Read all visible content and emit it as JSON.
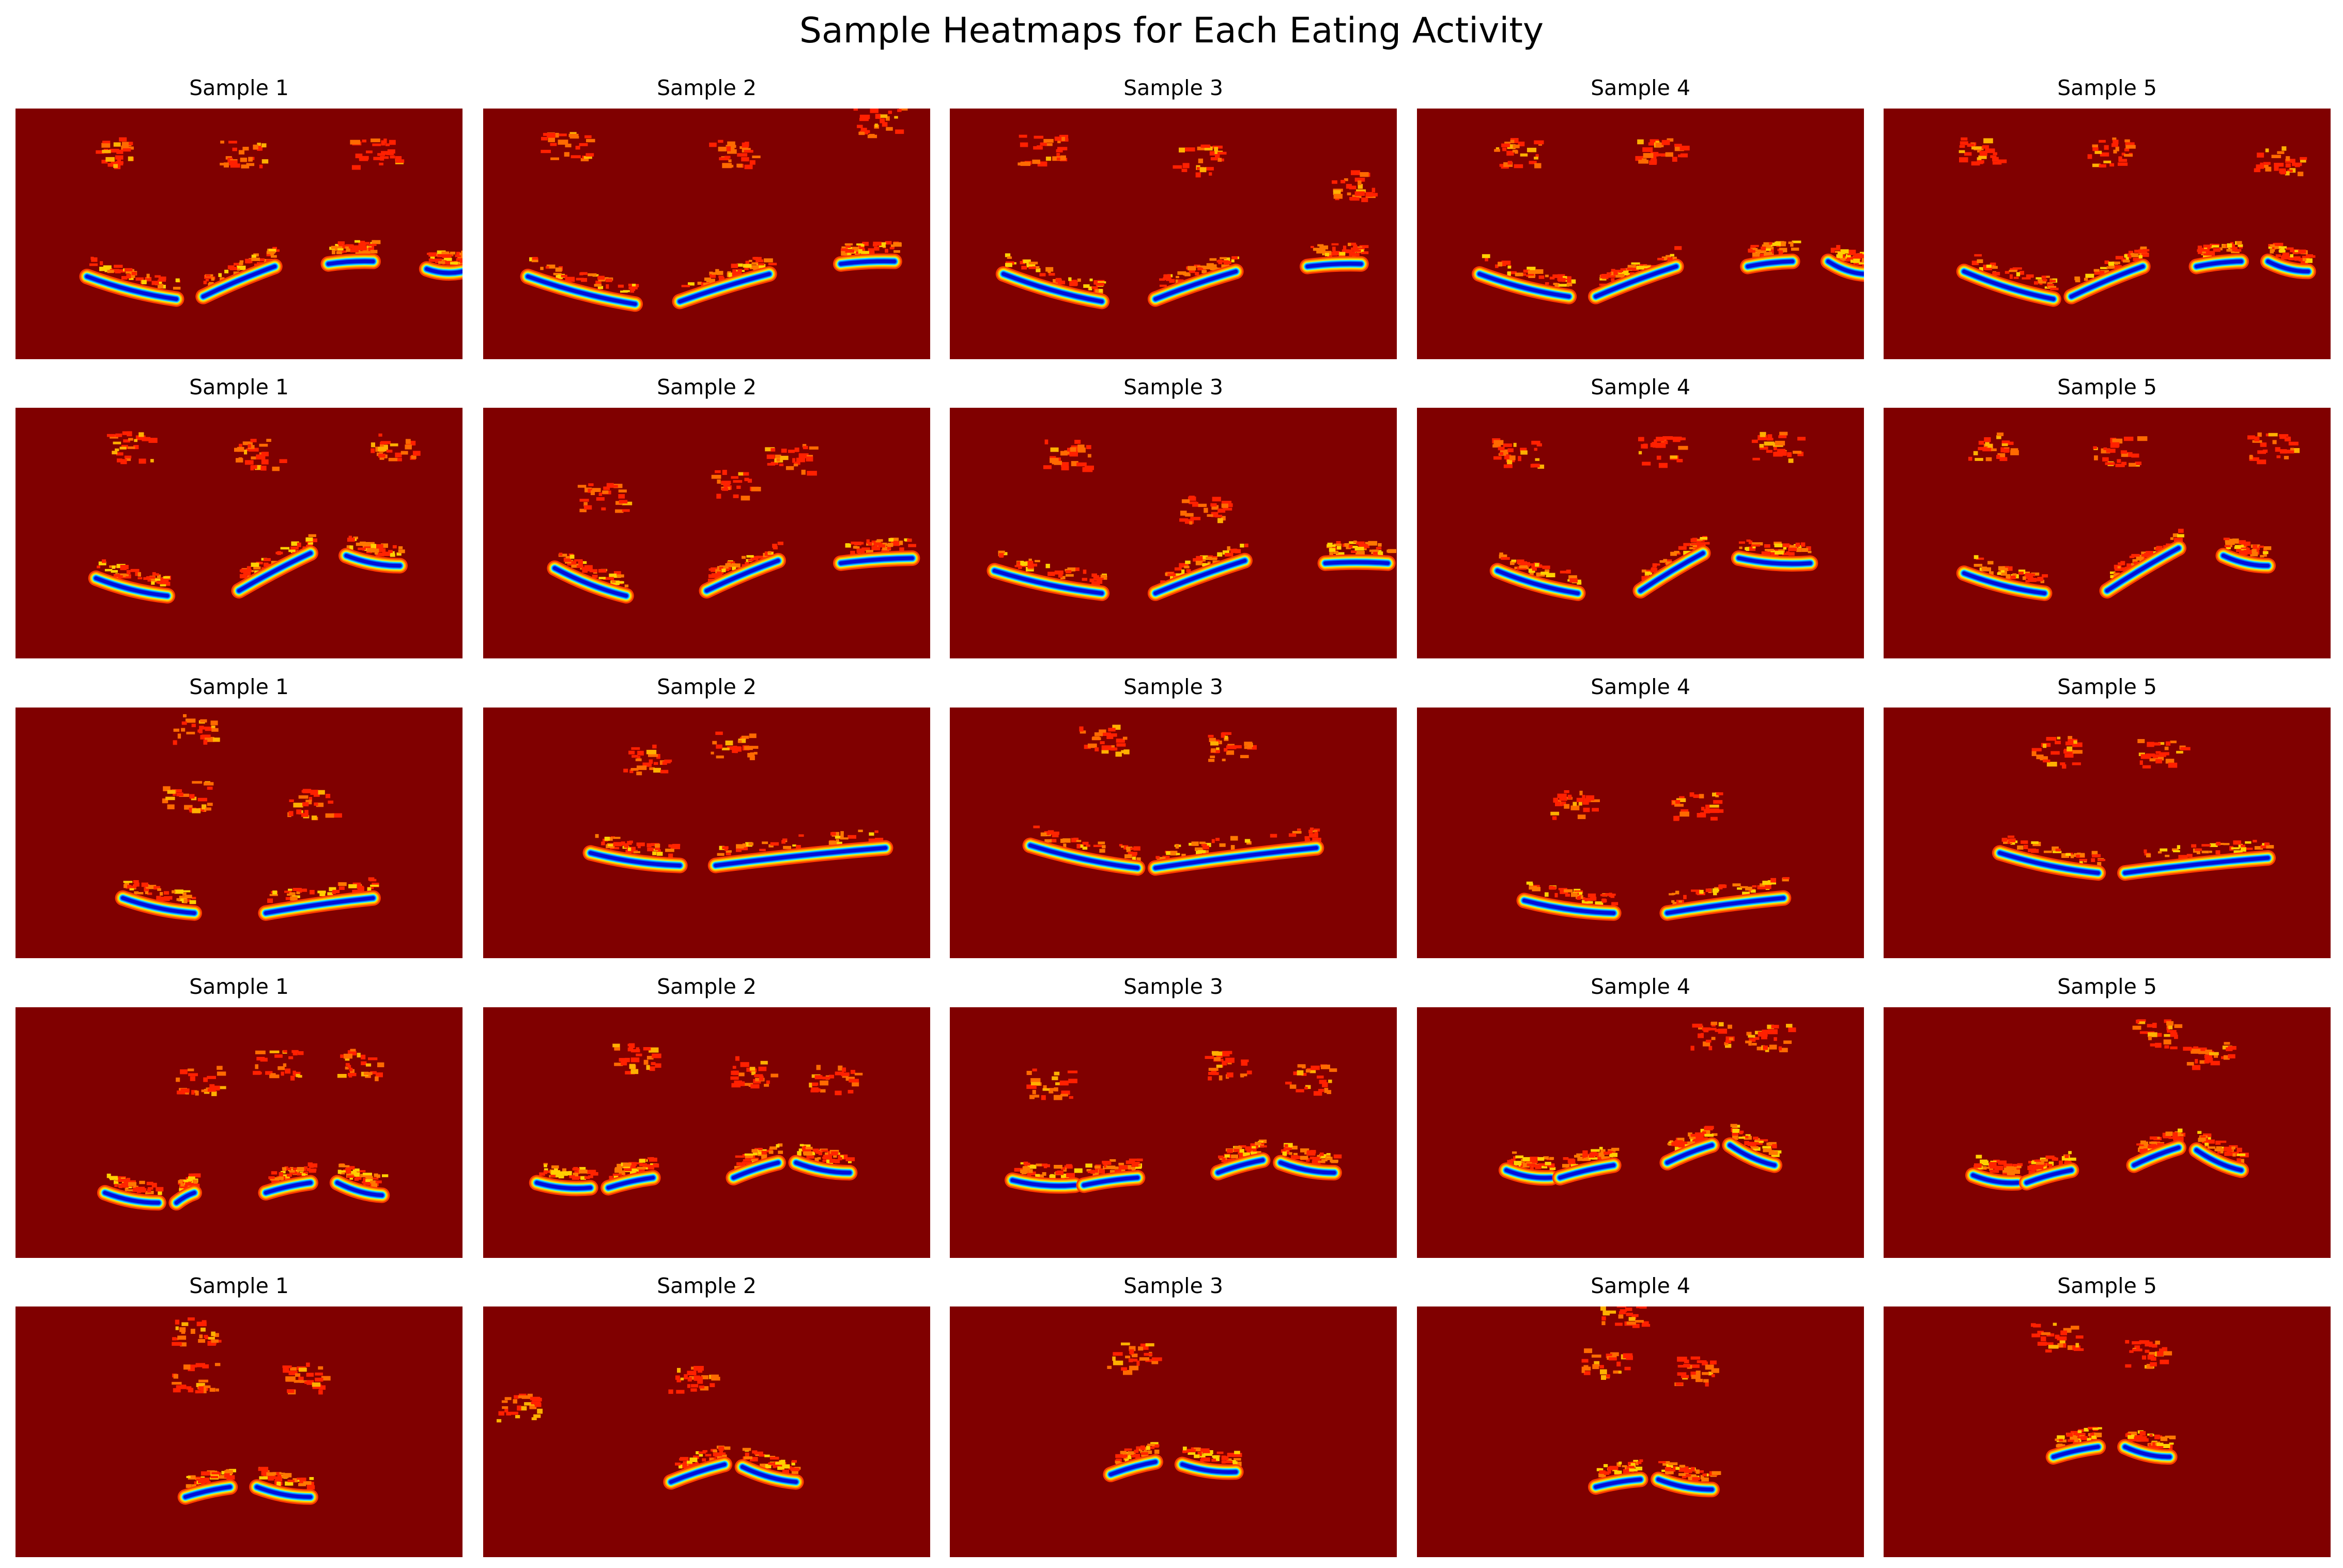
{
  "chart_data": {
    "type": "heatmap",
    "title": "Sample Heatmaps for Each Eating Activity",
    "colormap": "jet",
    "background_color": "#800000",
    "rows": [
      {
        "panels": [
          {
            "title": "Sample 1",
            "arcs": [
              [
                0.16,
                0.67,
                0.36,
                0.76,
                0.24
              ],
              [
                0.42,
                0.75,
                0.58,
                0.63,
                0.05
              ],
              [
                0.7,
                0.62,
                0.8,
                0.61,
                0.02
              ],
              [
                0.92,
                0.64,
                1.0,
                0.65,
                0.02
              ]
            ],
            "blobs": [
              [
                0.22,
                0.17
              ],
              [
                0.5,
                0.17
              ],
              [
                0.8,
                0.17
              ]
            ]
          },
          {
            "title": "Sample 2",
            "arcs": [
              [
                0.1,
                0.67,
                0.34,
                0.78,
                0.24
              ],
              [
                0.44,
                0.77,
                0.64,
                0.66,
                0.06
              ],
              [
                0.8,
                0.62,
                0.92,
                0.61,
                0.02
              ]
            ],
            "blobs": [
              [
                0.18,
                0.15
              ],
              [
                0.55,
                0.18
              ],
              [
                0.88,
                0.05
              ]
            ]
          },
          {
            "title": "Sample 3",
            "arcs": [
              [
                0.12,
                0.66,
                0.34,
                0.77,
                0.23
              ],
              [
                0.46,
                0.76,
                0.64,
                0.65,
                0.05
              ],
              [
                0.8,
                0.63,
                0.92,
                0.62,
                0.02
              ]
            ],
            "blobs": [
              [
                0.2,
                0.16
              ],
              [
                0.55,
                0.2
              ],
              [
                0.9,
                0.3
              ]
            ]
          },
          {
            "title": "Sample 4",
            "arcs": [
              [
                0.14,
                0.66,
                0.34,
                0.75,
                0.25
              ],
              [
                0.4,
                0.75,
                0.58,
                0.63,
                0.06
              ],
              [
                0.74,
                0.63,
                0.84,
                0.61,
                0.02
              ],
              [
                0.92,
                0.61,
                1.0,
                0.66,
                0.02
              ]
            ],
            "blobs": [
              [
                0.22,
                0.17
              ],
              [
                0.54,
                0.17
              ]
            ]
          },
          {
            "title": "Sample 5",
            "arcs": [
              [
                0.18,
                0.65,
                0.38,
                0.76,
                0.24
              ],
              [
                0.42,
                0.75,
                0.58,
                0.63,
                0.05
              ],
              [
                0.7,
                0.63,
                0.8,
                0.61,
                0.02
              ],
              [
                0.86,
                0.61,
                0.95,
                0.65,
                0.02
              ]
            ],
            "blobs": [
              [
                0.22,
                0.17
              ],
              [
                0.5,
                0.17
              ],
              [
                0.88,
                0.2
              ]
            ]
          }
        ]
      },
      {
        "panels": [
          {
            "title": "Sample 1",
            "arcs": [
              [
                0.18,
                0.68,
                0.34,
                0.75,
                0.22
              ],
              [
                0.5,
                0.73,
                0.66,
                0.58,
                0.05
              ],
              [
                0.74,
                0.59,
                0.86,
                0.63,
                0.02
              ]
            ],
            "blobs": [
              [
                0.25,
                0.15
              ],
              [
                0.54,
                0.18
              ],
              [
                0.84,
                0.15
              ]
            ]
          },
          {
            "title": "Sample 2",
            "arcs": [
              [
                0.16,
                0.64,
                0.32,
                0.75,
                0.22
              ],
              [
                0.5,
                0.73,
                0.66,
                0.61,
                0.05
              ],
              [
                0.8,
                0.62,
                0.96,
                0.6,
                0.02
              ]
            ],
            "blobs": [
              [
                0.26,
                0.35
              ],
              [
                0.56,
                0.3
              ],
              [
                0.68,
                0.2
              ]
            ]
          },
          {
            "title": "Sample 3",
            "arcs": [
              [
                0.1,
                0.65,
                0.34,
                0.74,
                0.24
              ],
              [
                0.46,
                0.74,
                0.66,
                0.61,
                0.05
              ],
              [
                0.84,
                0.62,
                0.98,
                0.62,
                0.02
              ]
            ],
            "blobs": [
              [
                0.26,
                0.18
              ],
              [
                0.56,
                0.4
              ]
            ]
          },
          {
            "title": "Sample 4",
            "arcs": [
              [
                0.18,
                0.65,
                0.36,
                0.74,
                0.23
              ],
              [
                0.5,
                0.73,
                0.64,
                0.58,
                0.05
              ],
              [
                0.72,
                0.6,
                0.88,
                0.62,
                0.02
              ]
            ],
            "blobs": [
              [
                0.22,
                0.17
              ],
              [
                0.54,
                0.17
              ],
              [
                0.8,
                0.15
              ]
            ]
          },
          {
            "title": "Sample 5",
            "arcs": [
              [
                0.18,
                0.66,
                0.36,
                0.74,
                0.23
              ],
              [
                0.5,
                0.73,
                0.66,
                0.56,
                0.05
              ],
              [
                0.76,
                0.59,
                0.86,
                0.63,
                0.02
              ]
            ],
            "blobs": [
              [
                0.24,
                0.15
              ],
              [
                0.52,
                0.17
              ],
              [
                0.86,
                0.15
              ]
            ]
          }
        ]
      },
      {
        "panels": [
          {
            "title": "Sample 1",
            "arcs": [
              [
                0.24,
                0.76,
                0.4,
                0.82,
                0.26
              ],
              [
                0.56,
                0.82,
                0.8,
                0.76,
                0.05
              ]
            ],
            "blobs": [
              [
                0.38,
                0.35
              ],
              [
                0.66,
                0.38
              ],
              [
                0.4,
                0.08
              ]
            ]
          },
          {
            "title": "Sample 2",
            "arcs": [
              [
                0.24,
                0.58,
                0.44,
                0.63,
                0.26
              ],
              [
                0.52,
                0.63,
                0.9,
                0.56,
                0.05
              ]
            ],
            "blobs": [
              [
                0.36,
                0.2
              ],
              [
                0.56,
                0.15
              ]
            ]
          },
          {
            "title": "Sample 3",
            "arcs": [
              [
                0.18,
                0.55,
                0.42,
                0.64,
                0.26
              ],
              [
                0.46,
                0.64,
                0.82,
                0.56,
                0.05
              ]
            ],
            "blobs": [
              [
                0.34,
                0.12
              ],
              [
                0.62,
                0.15
              ]
            ]
          },
          {
            "title": "Sample 4",
            "arcs": [
              [
                0.24,
                0.77,
                0.44,
                0.82,
                0.25
              ],
              [
                0.56,
                0.82,
                0.82,
                0.76,
                0.05
              ]
            ],
            "blobs": [
              [
                0.34,
                0.38
              ],
              [
                0.62,
                0.38
              ]
            ]
          },
          {
            "title": "Sample 5",
            "arcs": [
              [
                0.26,
                0.58,
                0.48,
                0.66,
                0.25
              ],
              [
                0.54,
                0.66,
                0.86,
                0.6,
                0.05
              ]
            ],
            "blobs": [
              [
                0.38,
                0.17
              ],
              [
                0.62,
                0.18
              ]
            ]
          }
        ]
      },
      {
        "panels": [
          {
            "title": "Sample 1",
            "arcs": [
              [
                0.2,
                0.74,
                0.32,
                0.78,
                0.22
              ],
              [
                0.36,
                0.78,
                0.4,
                0.74,
                0.02
              ],
              [
                0.56,
                0.74,
                0.66,
                0.7,
                0.05
              ],
              [
                0.72,
                0.7,
                0.82,
                0.75,
                0.02
              ]
            ],
            "blobs": [
              [
                0.58,
                0.22
              ],
              [
                0.76,
                0.22
              ],
              [
                0.4,
                0.28
              ]
            ]
          },
          {
            "title": "Sample 2",
            "arcs": [
              [
                0.12,
                0.7,
                0.24,
                0.72,
                0.2
              ],
              [
                0.28,
                0.72,
                0.38,
                0.68,
                0.02
              ],
              [
                0.56,
                0.68,
                0.66,
                0.62,
                0.05
              ],
              [
                0.7,
                0.62,
                0.82,
                0.66,
                0.02
              ]
            ],
            "blobs": [
              [
                0.6,
                0.25
              ],
              [
                0.78,
                0.28
              ],
              [
                0.34,
                0.2
              ]
            ]
          },
          {
            "title": "Sample 3",
            "arcs": [
              [
                0.14,
                0.69,
                0.28,
                0.71,
                0.22
              ],
              [
                0.3,
                0.71,
                0.42,
                0.68,
                0.02
              ],
              [
                0.6,
                0.66,
                0.7,
                0.61,
                0.05
              ],
              [
                0.74,
                0.62,
                0.86,
                0.66,
                0.02
              ]
            ],
            "blobs": [
              [
                0.62,
                0.22
              ],
              [
                0.8,
                0.28
              ],
              [
                0.22,
                0.3
              ]
            ]
          },
          {
            "title": "Sample 4",
            "arcs": [
              [
                0.2,
                0.65,
                0.3,
                0.68,
                0.21
              ],
              [
                0.32,
                0.68,
                0.44,
                0.63,
                0.02
              ],
              [
                0.56,
                0.62,
                0.66,
                0.55,
                0.05
              ],
              [
                0.7,
                0.55,
                0.8,
                0.63,
                0.02
              ]
            ],
            "blobs": [
              [
                0.66,
                0.1
              ],
              [
                0.78,
                0.12
              ]
            ]
          },
          {
            "title": "Sample 5",
            "arcs": [
              [
                0.2,
                0.67,
                0.3,
                0.7,
                0.21
              ],
              [
                0.32,
                0.7,
                0.42,
                0.65,
                0.02
              ],
              [
                0.56,
                0.63,
                0.66,
                0.56,
                0.05
              ],
              [
                0.7,
                0.57,
                0.8,
                0.65,
                0.02
              ]
            ],
            "blobs": [
              [
                0.6,
                0.1
              ],
              [
                0.72,
                0.18
              ]
            ]
          }
        ]
      },
      {
        "panels": [
          {
            "title": "Sample 1",
            "arcs": [
              [
                0.38,
                0.76,
                0.48,
                0.72,
                0.05
              ],
              [
                0.54,
                0.72,
                0.66,
                0.76,
                0.02
              ]
            ],
            "blobs": [
              [
                0.4,
                0.28
              ],
              [
                0.64,
                0.28
              ],
              [
                0.4,
                0.1
              ]
            ]
          },
          {
            "title": "Sample 2",
            "arcs": [
              [
                0.42,
                0.7,
                0.54,
                0.63,
                0.05
              ],
              [
                0.58,
                0.64,
                0.7,
                0.7,
                0.02
              ]
            ],
            "blobs": [
              [
                0.46,
                0.28
              ],
              [
                0.08,
                0.4
              ]
            ]
          },
          {
            "title": "Sample 3",
            "arcs": [
              [
                0.36,
                0.67,
                0.46,
                0.62,
                0.05
              ],
              [
                0.52,
                0.63,
                0.64,
                0.66,
                0.02
              ]
            ],
            "blobs": [
              [
                0.4,
                0.2
              ]
            ]
          },
          {
            "title": "Sample 4",
            "arcs": [
              [
                0.4,
                0.72,
                0.5,
                0.69,
                0.05
              ],
              [
                0.54,
                0.69,
                0.66,
                0.73,
                0.02
              ]
            ],
            "blobs": [
              [
                0.42,
                0.22
              ],
              [
                0.62,
                0.25
              ],
              [
                0.46,
                0.02
              ]
            ]
          },
          {
            "title": "Sample 5",
            "arcs": [
              [
                0.38,
                0.6,
                0.48,
                0.56,
                0.05
              ],
              [
                0.54,
                0.56,
                0.64,
                0.6,
                0.02
              ]
            ],
            "blobs": [
              [
                0.38,
                0.12
              ],
              [
                0.58,
                0.18
              ]
            ]
          }
        ]
      }
    ]
  }
}
